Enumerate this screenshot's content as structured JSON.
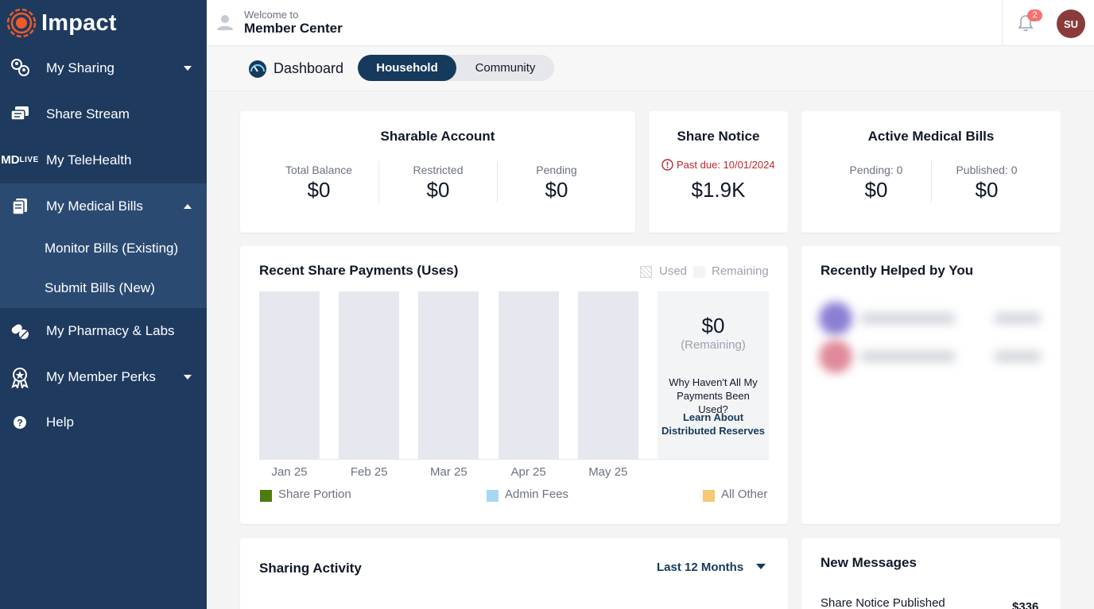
{
  "brand": {
    "name": "Impact"
  },
  "sidebar": {
    "items": [
      {
        "label": "My Sharing",
        "icon": "users-share-icon",
        "caret": "down"
      },
      {
        "label": "Share Stream",
        "icon": "chat-stream-icon"
      },
      {
        "label": "My TeleHealth",
        "icon": "md-live-icon",
        "icon_text_top": "MD",
        "icon_text_bottom": "LIVE"
      },
      {
        "label": "My Medical Bills",
        "icon": "document-icon",
        "caret": "up"
      },
      {
        "label": "My Pharmacy & Labs",
        "icon": "pills-icon"
      },
      {
        "label": "My Member Perks",
        "icon": "award-icon",
        "caret": "down"
      },
      {
        "label": "Help",
        "icon": "help-icon"
      }
    ],
    "sub_items": [
      {
        "label": "Monitor Bills (Existing)"
      },
      {
        "label": "Submit Bills (New)"
      }
    ]
  },
  "header": {
    "welcome": "Welcome to",
    "title": "Member Center",
    "notifications_count": "2",
    "avatar_initials": "SU"
  },
  "tabs": {
    "dashboard_label": "Dashboard",
    "segments": [
      {
        "label": "Household",
        "active": true
      },
      {
        "label": "Community",
        "active": false
      }
    ]
  },
  "sharable_account": {
    "title": "Sharable Account",
    "stats": [
      {
        "label": "Total Balance",
        "value": "$0"
      },
      {
        "label": "Restricted",
        "value": "$0"
      },
      {
        "label": "Pending",
        "value": "$0"
      }
    ]
  },
  "share_notice": {
    "title": "Share Notice",
    "due_text": "Past due: 10/01/2024",
    "amount": "$1.9K"
  },
  "active_bills": {
    "title": "Active Medical Bills",
    "stats": [
      {
        "label": "Pending: 0",
        "value": "$0"
      },
      {
        "label": "Published: 0",
        "value": "$0"
      }
    ]
  },
  "recent_payments": {
    "title": "Recent Share Payments (Uses)",
    "legend_top": {
      "used": "Used",
      "remaining": "Remaining"
    },
    "remaining": {
      "amount": "$0",
      "label": "(Remaining)",
      "question": "Why Haven't All My Payments Been Used?",
      "link": "Learn About Distributed Reserves"
    },
    "legend_bottom": [
      {
        "label": "Share Portion",
        "color": "#4d7c0f"
      },
      {
        "label": "Admin Fees",
        "color": "#a5d8f3"
      },
      {
        "label": "All Other",
        "color": "#f4c978"
      }
    ]
  },
  "chart_data": {
    "type": "bar",
    "categories": [
      "Jan 25",
      "Feb 25",
      "Mar 25",
      "Apr 25",
      "May 25"
    ],
    "values": [
      0,
      0,
      0,
      0,
      0
    ],
    "title": "Recent Share Payments (Uses)",
    "legend": [
      "Share Portion",
      "Admin Fees",
      "All Other"
    ]
  },
  "recently_helped": {
    "title": "Recently Helped by You"
  },
  "sharing_activity": {
    "title": "Sharing Activity",
    "range": "Last 12 Months"
  },
  "new_messages": {
    "title": "New Messages",
    "first_item": "Share Notice Published",
    "first_amount": "$336"
  },
  "colors": {
    "sidebar": "#1e3a5f",
    "sidebar_active_group": "#2b4a72",
    "accent": "#163a5c",
    "alert": "#c0262d",
    "brand_orange": "#f05a28"
  }
}
